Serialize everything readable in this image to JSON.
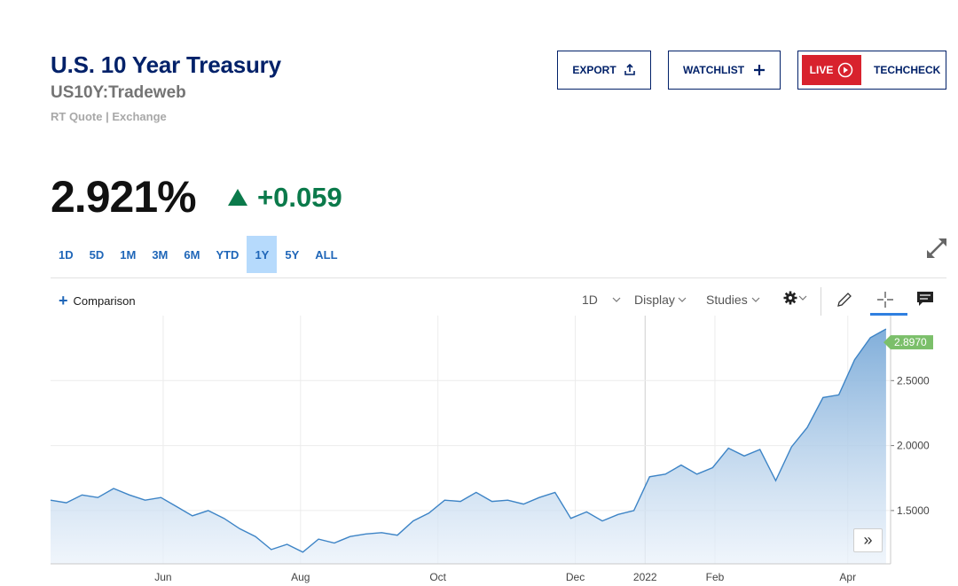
{
  "header": {
    "title": "U.S. 10 Year Treasury",
    "symbol": "US10Y:Tradeweb",
    "quote_type": "RT Quote | Exchange",
    "export_label": "EXPORT",
    "watchlist_label": "WATCHLIST",
    "live_label": "LIVE",
    "techcheck_label": "TECHCHECK"
  },
  "quote": {
    "price": "2.921%",
    "change": "+0.059",
    "change_color": "#0b7a4b"
  },
  "ranges": [
    {
      "label": "1D"
    },
    {
      "label": "5D"
    },
    {
      "label": "1M"
    },
    {
      "label": "3M"
    },
    {
      "label": "6M"
    },
    {
      "label": "YTD"
    },
    {
      "label": "1Y",
      "active": true
    },
    {
      "label": "5Y"
    },
    {
      "label": "ALL"
    }
  ],
  "toolbar": {
    "comparison_label": "Comparison",
    "interval_label": "1D",
    "display_label": "Display",
    "studies_label": "Studies"
  },
  "chart_data": {
    "type": "area",
    "last_value_label": "2.8970",
    "last_value": 2.897,
    "y_ticks": [
      "1.5000",
      "2.0000",
      "2.5000"
    ],
    "y_tick_values": [
      1.5,
      2.0,
      2.5
    ],
    "ylim": [
      1.09,
      3.0
    ],
    "x_ticks": [
      "Jun",
      "Aug",
      "Oct",
      "Dec",
      "2022",
      "Feb",
      "Apr"
    ],
    "x_tick_dates": [
      "2021-06-01",
      "2021-08-01",
      "2021-10-01",
      "2021-12-01",
      "2022-01-01",
      "2022-02-01",
      "2022-04-01"
    ],
    "x_range": [
      "2021-04-12",
      "2022-04-20"
    ],
    "grid": true,
    "line_color": "#3d84c6",
    "accent_color": "#7bbf6a",
    "x": [
      "2021-04-12",
      "2021-04-19",
      "2021-04-26",
      "2021-05-03",
      "2021-05-10",
      "2021-05-17",
      "2021-05-24",
      "2021-05-31",
      "2021-06-07",
      "2021-06-14",
      "2021-06-21",
      "2021-06-28",
      "2021-07-05",
      "2021-07-12",
      "2021-07-19",
      "2021-07-26",
      "2021-08-02",
      "2021-08-09",
      "2021-08-16",
      "2021-08-23",
      "2021-08-30",
      "2021-09-06",
      "2021-09-13",
      "2021-09-20",
      "2021-09-27",
      "2021-10-04",
      "2021-10-11",
      "2021-10-18",
      "2021-10-25",
      "2021-11-01",
      "2021-11-08",
      "2021-11-15",
      "2021-11-22",
      "2021-11-29",
      "2021-12-06",
      "2021-12-13",
      "2021-12-20",
      "2021-12-27",
      "2022-01-03",
      "2022-01-10",
      "2022-01-17",
      "2022-01-24",
      "2022-01-31",
      "2022-02-07",
      "2022-02-14",
      "2022-02-21",
      "2022-02-28",
      "2022-03-07",
      "2022-03-14",
      "2022-03-21",
      "2022-03-28",
      "2022-04-04",
      "2022-04-11",
      "2022-04-18"
    ],
    "values": [
      1.58,
      1.56,
      1.62,
      1.6,
      1.67,
      1.62,
      1.58,
      1.6,
      1.53,
      1.46,
      1.5,
      1.44,
      1.36,
      1.3,
      1.2,
      1.24,
      1.18,
      1.28,
      1.25,
      1.3,
      1.32,
      1.33,
      1.31,
      1.42,
      1.48,
      1.58,
      1.57,
      1.64,
      1.57,
      1.58,
      1.55,
      1.6,
      1.64,
      1.44,
      1.49,
      1.42,
      1.47,
      1.5,
      1.76,
      1.78,
      1.85,
      1.78,
      1.83,
      1.98,
      1.92,
      1.97,
      1.73,
      1.99,
      2.14,
      2.37,
      2.39,
      2.66,
      2.83,
      2.897
    ]
  }
}
